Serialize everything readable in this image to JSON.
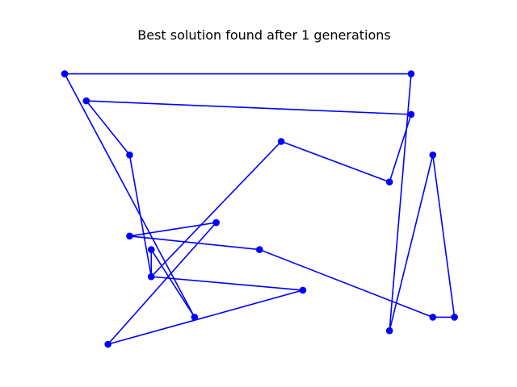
{
  "colors": {
    "route": "#0000ff",
    "background": "#ffffff"
  },
  "chart_data": {
    "type": "line",
    "title": "Best solution found after 1 generations",
    "xlabel": "",
    "ylabel": "",
    "axes_visible": false,
    "grid": false,
    "xlim": [
      0,
      18.5
    ],
    "ylim": [
      0,
      11
    ],
    "series": [
      {
        "marker": "circle",
        "points": [
          [
            0,
            10
          ],
          [
            16,
            10
          ],
          [
            15,
            0.5
          ],
          [
            17,
            7
          ],
          [
            18,
            1
          ],
          [
            17,
            1
          ],
          [
            9,
            3.5
          ],
          [
            3,
            4
          ],
          [
            7,
            4.5
          ],
          [
            2,
            0
          ],
          [
            11,
            2
          ],
          [
            4,
            2.5
          ],
          [
            10,
            7.5
          ],
          [
            15,
            6
          ],
          [
            16,
            8.5
          ],
          [
            1,
            9
          ],
          [
            3,
            7
          ],
          [
            4,
            2.5
          ],
          [
            4,
            3.5
          ],
          [
            6,
            1
          ],
          [
            0,
            10
          ]
        ]
      }
    ]
  }
}
